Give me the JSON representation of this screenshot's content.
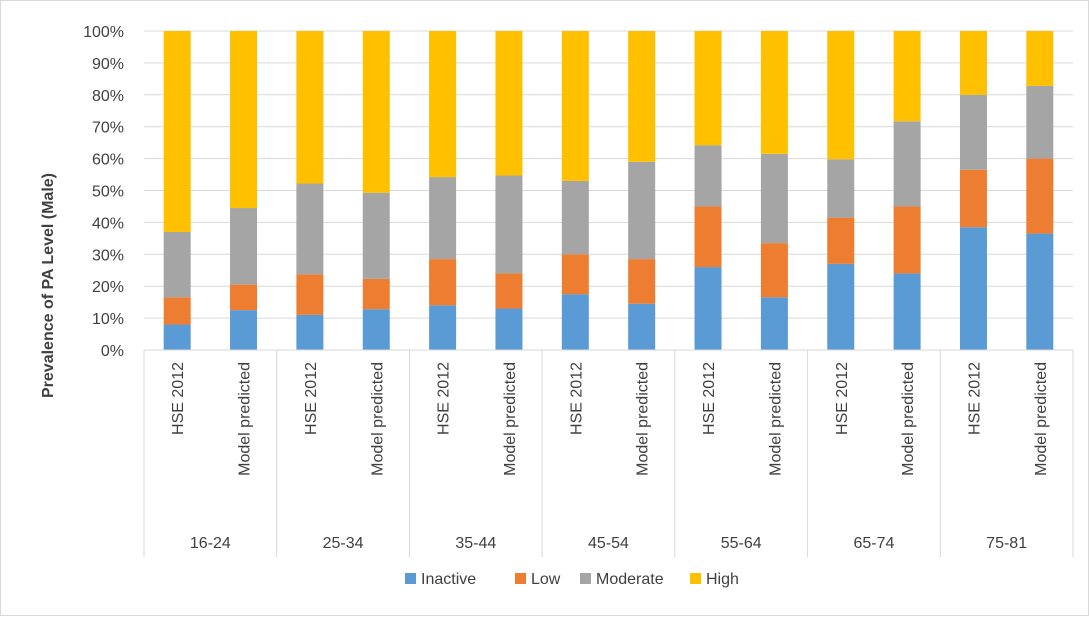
{
  "chart_data": {
    "type": "bar",
    "stacked": true,
    "ylabel": "Prevalence of PA Level (Male)",
    "ylim": [
      0,
      100
    ],
    "yticks": [
      "0%",
      "10%",
      "20%",
      "30%",
      "40%",
      "50%",
      "60%",
      "70%",
      "80%",
      "90%",
      "100%"
    ],
    "grid": true,
    "legend_position": "bottom",
    "groups": [
      "16-24",
      "25-34",
      "35-44",
      "45-54",
      "55-64",
      "65-74",
      "75-81"
    ],
    "sub_categories": [
      "HSE 2012",
      "Model predicted"
    ],
    "series": [
      {
        "name": "Inactive",
        "color": "#5b9bd5",
        "values": [
          8,
          12.5,
          11,
          12.8,
          14,
          13,
          17.5,
          14.5,
          26,
          16.5,
          27,
          24,
          38.5,
          36.5
        ]
      },
      {
        "name": "Low",
        "color": "#ed7d31",
        "values": [
          8.5,
          8,
          12.7,
          9.5,
          14.5,
          11,
          12.5,
          14,
          19,
          17,
          14.5,
          21,
          18,
          23.5
        ]
      },
      {
        "name": "Moderate",
        "color": "#a5a5a5",
        "values": [
          20.5,
          24,
          28.5,
          27,
          25.7,
          30.7,
          23,
          30.5,
          19.2,
          28,
          18.3,
          26.7,
          23.5,
          22.8
        ]
      },
      {
        "name": "High",
        "color": "#ffc000",
        "values": [
          63,
          55.5,
          47.8,
          50.7,
          45.8,
          45.3,
          47,
          41,
          35.8,
          38.5,
          40.2,
          28.3,
          20,
          17.2
        ]
      }
    ]
  }
}
